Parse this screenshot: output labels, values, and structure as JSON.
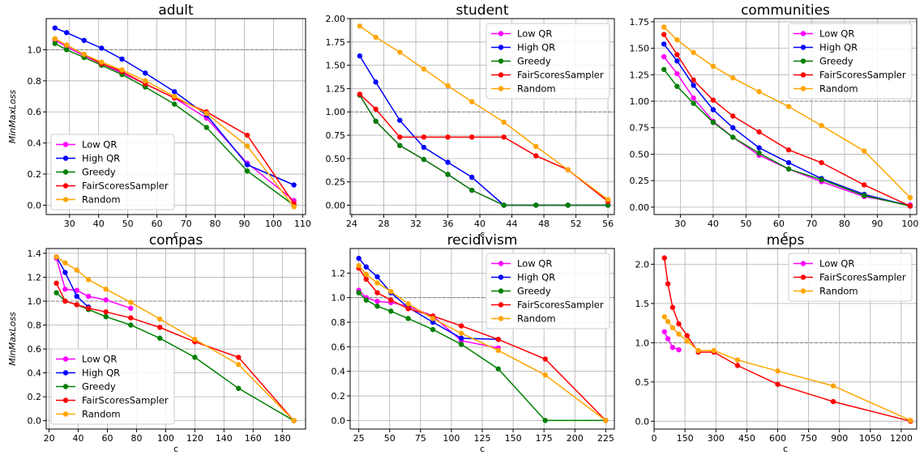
{
  "colors": {
    "Low QR": "#ff00ff",
    "High QR": "#0000ff",
    "Greedy": "#008000",
    "FairScoresSampler": "#ff0000",
    "Random": "#ffa500"
  },
  "chart_data": [
    {
      "type": "line",
      "title": "adult",
      "xlabel": "c",
      "ylabel": "MinMaxLoss",
      "xlim": [
        22,
        111
      ],
      "ylim": [
        -0.06,
        1.2
      ],
      "xticks": [
        30,
        40,
        50,
        60,
        70,
        80,
        90,
        100,
        110
      ],
      "yticks": [
        0.0,
        0.2,
        0.4,
        0.6,
        0.8,
        1.0
      ],
      "ytick_labels": [
        "0.0",
        "0.2",
        "0.4",
        "0.6",
        "0.8",
        "1.0"
      ],
      "reference_line": 1.0,
      "legend": "lower-left",
      "series": [
        {
          "name": "Low QR",
          "x": [
            25,
            29,
            35,
            41,
            48,
            56,
            66,
            77,
            91,
            107
          ],
          "y": [
            1.06,
            1.02,
            0.96,
            0.91,
            0.85,
            0.78,
            0.69,
            0.56,
            0.27,
            0.03
          ]
        },
        {
          "name": "High QR",
          "x": [
            25,
            29,
            35,
            41,
            48,
            56,
            66,
            77,
            91,
            107
          ],
          "y": [
            1.14,
            1.11,
            1.06,
            1.01,
            0.94,
            0.85,
            0.73,
            0.58,
            0.26,
            0.13
          ]
        },
        {
          "name": "Greedy",
          "x": [
            25,
            29,
            35,
            41,
            48,
            56,
            66,
            77,
            91,
            107
          ],
          "y": [
            1.04,
            1.0,
            0.95,
            0.9,
            0.84,
            0.76,
            0.65,
            0.5,
            0.22,
            0.0
          ]
        },
        {
          "name": "FairScoresSampler",
          "x": [
            25,
            29,
            35,
            41,
            48,
            56,
            66,
            77,
            91,
            107
          ],
          "y": [
            1.07,
            1.03,
            0.97,
            0.91,
            0.86,
            0.78,
            0.69,
            0.6,
            0.45,
            0.01
          ]
        },
        {
          "name": "Random",
          "x": [
            25,
            29,
            35,
            41,
            48,
            56,
            66,
            77,
            91,
            107
          ],
          "y": [
            1.07,
            1.03,
            0.97,
            0.92,
            0.87,
            0.8,
            0.7,
            0.59,
            0.38,
            -0.01
          ]
        }
      ]
    },
    {
      "type": "line",
      "title": "student",
      "xlabel": "c",
      "ylabel": "",
      "xlim": [
        23.8,
        56.8
      ],
      "ylim": [
        -0.1,
        2.0
      ],
      "xticks": [
        24,
        28,
        32,
        36,
        40,
        44,
        48,
        52,
        56
      ],
      "yticks": [
        0.0,
        0.25,
        0.5,
        0.75,
        1.0,
        1.25,
        1.5,
        1.75,
        2.0
      ],
      "ytick_labels": [
        "0.00",
        "0.25",
        "0.50",
        "0.75",
        "1.00",
        "1.25",
        "1.50",
        "1.75",
        "2.00"
      ],
      "reference_line": 1.0,
      "legend": "top-right",
      "series": [
        {
          "name": "Low QR",
          "x": [
            25,
            27,
            30,
            33,
            36,
            39,
            43,
            47,
            51,
            56
          ],
          "y": [
            1.18,
            0.9,
            0.64,
            0.49,
            0.33,
            0.16,
            0.0,
            0.0,
            0.0,
            0.0
          ]
        },
        {
          "name": "High QR",
          "x": [
            25,
            27,
            30,
            33,
            36,
            39,
            43,
            47,
            51,
            56
          ],
          "y": [
            1.6,
            1.32,
            0.91,
            0.62,
            0.46,
            0.3,
            0.0,
            0.0,
            0.0,
            0.0
          ]
        },
        {
          "name": "Greedy",
          "x": [
            25,
            27,
            30,
            33,
            36,
            39,
            43,
            47,
            51,
            56
          ],
          "y": [
            1.18,
            0.9,
            0.64,
            0.49,
            0.33,
            0.16,
            0.0,
            0.0,
            0.0,
            0.0
          ]
        },
        {
          "name": "FairScoresSampler",
          "x": [
            25,
            27,
            30,
            33,
            36,
            39,
            43,
            47,
            51,
            56
          ],
          "y": [
            1.19,
            1.03,
            0.73,
            0.73,
            0.73,
            0.73,
            0.73,
            0.53,
            0.38,
            0.04
          ]
        },
        {
          "name": "Random",
          "x": [
            25,
            27,
            30,
            33,
            36,
            39,
            43,
            47,
            51,
            56
          ],
          "y": [
            1.92,
            1.8,
            1.64,
            1.46,
            1.28,
            1.11,
            0.89,
            0.63,
            0.38,
            0.06
          ]
        }
      ]
    },
    {
      "type": "line",
      "title": "communities",
      "xlabel": "c",
      "ylabel": "",
      "xlim": [
        22,
        102
      ],
      "ylim": [
        -0.07,
        1.78
      ],
      "xticks": [
        30,
        40,
        50,
        60,
        70,
        80,
        90,
        100
      ],
      "yticks": [
        0.0,
        0.25,
        0.5,
        0.75,
        1.0,
        1.25,
        1.5,
        1.75
      ],
      "ytick_labels": [
        "0.00",
        "0.25",
        "0.50",
        "0.75",
        "1.00",
        "1.25",
        "1.50",
        "1.75"
      ],
      "reference_line": 1.0,
      "legend": "top-right",
      "series": [
        {
          "name": "Low QR",
          "x": [
            25,
            29,
            34,
            40,
            46,
            54,
            63,
            73,
            86,
            100
          ],
          "y": [
            1.42,
            1.26,
            1.03,
            0.81,
            0.66,
            0.49,
            0.36,
            0.24,
            0.1,
            0.02
          ]
        },
        {
          "name": "High QR",
          "x": [
            25,
            29,
            34,
            40,
            46,
            54,
            63,
            73,
            86,
            100
          ],
          "y": [
            1.54,
            1.38,
            1.15,
            0.92,
            0.75,
            0.56,
            0.42,
            0.27,
            0.12,
            0.01
          ]
        },
        {
          "name": "Greedy",
          "x": [
            25,
            29,
            34,
            40,
            46,
            54,
            63,
            73,
            86,
            100
          ],
          "y": [
            1.3,
            1.14,
            0.98,
            0.8,
            0.66,
            0.51,
            0.36,
            0.26,
            0.11,
            0.01
          ]
        },
        {
          "name": "FairScoresSampler",
          "x": [
            25,
            29,
            34,
            40,
            46,
            54,
            63,
            73,
            86,
            100
          ],
          "y": [
            1.63,
            1.44,
            1.2,
            1.01,
            0.86,
            0.71,
            0.54,
            0.42,
            0.21,
            0.01
          ]
        },
        {
          "name": "Random",
          "x": [
            25,
            29,
            34,
            40,
            46,
            54,
            63,
            73,
            86,
            100
          ],
          "y": [
            1.7,
            1.58,
            1.46,
            1.33,
            1.22,
            1.09,
            0.95,
            0.77,
            0.53,
            0.09
          ]
        }
      ]
    },
    {
      "type": "line",
      "title": "compas",
      "xlabel": "c",
      "ylabel": "MinMaxLoss",
      "xlim": [
        18,
        196
      ],
      "ylim": [
        -0.07,
        1.44
      ],
      "xticks": [
        20,
        40,
        60,
        80,
        100,
        120,
        140,
        160,
        180
      ],
      "yticks": [
        0.0,
        0.2,
        0.4,
        0.6,
        0.8,
        1.0,
        1.2,
        1.4
      ],
      "ytick_labels": [
        "0.0",
        "0.2",
        "0.4",
        "0.6",
        "0.8",
        "1.0",
        "1.2",
        "1.4"
      ],
      "reference_line": 1.0,
      "legend": "lower-left",
      "series": [
        {
          "name": "Low QR",
          "x": [
            25,
            31,
            39,
            47,
            59,
            76
          ],
          "y": [
            1.36,
            1.1,
            1.09,
            1.04,
            1.01,
            0.94
          ]
        },
        {
          "name": "High QR",
          "x": [
            25,
            31,
            39,
            47
          ],
          "y": [
            1.37,
            1.24,
            1.04,
            0.95
          ]
        },
        {
          "name": "Greedy",
          "x": [
            25,
            31,
            39,
            47,
            59,
            76,
            96,
            120,
            150,
            188
          ],
          "y": [
            1.07,
            1.0,
            0.97,
            0.93,
            0.87,
            0.8,
            0.69,
            0.53,
            0.27,
            0.0
          ]
        },
        {
          "name": "FairScoresSampler",
          "x": [
            25,
            31,
            39,
            47,
            59,
            76,
            96,
            120,
            150,
            188
          ],
          "y": [
            1.15,
            1.0,
            0.97,
            0.94,
            0.91,
            0.86,
            0.78,
            0.66,
            0.53,
            0.0
          ]
        },
        {
          "name": "Random",
          "x": [
            25,
            31,
            39,
            47,
            59,
            76,
            96,
            120,
            150,
            188
          ],
          "y": [
            1.37,
            1.32,
            1.26,
            1.18,
            1.1,
            0.99,
            0.85,
            0.68,
            0.47,
            0.0
          ]
        }
      ]
    },
    {
      "type": "line",
      "title": "recidivism",
      "xlabel": "c",
      "ylabel": "",
      "xlim": [
        18,
        232
      ],
      "ylim": [
        -0.07,
        1.4
      ],
      "xticks": [
        25,
        50,
        75,
        100,
        125,
        150,
        175,
        200,
        225
      ],
      "yticks": [
        0.0,
        0.2,
        0.4,
        0.6,
        0.8,
        1.0,
        1.2
      ],
      "ytick_labels": [
        "0.0",
        "0.2",
        "0.4",
        "0.6",
        "0.8",
        "1.0",
        "1.2"
      ],
      "reference_line": 1.0,
      "legend": "top-right",
      "series": [
        {
          "name": "Low QR",
          "x": [
            25,
            31,
            40,
            51,
            65,
            85,
            108,
            138
          ],
          "y": [
            1.06,
            1.0,
            0.97,
            0.96,
            0.93,
            0.85,
            0.65,
            0.59
          ]
        },
        {
          "name": "High QR",
          "x": [
            25,
            31,
            40,
            51,
            65,
            85,
            108,
            138
          ],
          "y": [
            1.32,
            1.25,
            1.17,
            1.04,
            0.92,
            0.8,
            0.67,
            0.66
          ]
        },
        {
          "name": "Greedy",
          "x": [
            25,
            31,
            40,
            51,
            65,
            85,
            108,
            138,
            176,
            225
          ],
          "y": [
            1.04,
            0.98,
            0.93,
            0.89,
            0.83,
            0.74,
            0.62,
            0.42,
            0.0,
            0.0
          ]
        },
        {
          "name": "FairScoresSampler",
          "x": [
            25,
            31,
            40,
            51,
            65,
            85,
            108,
            138,
            176,
            225
          ],
          "y": [
            1.24,
            1.15,
            1.04,
            0.98,
            0.91,
            0.85,
            0.77,
            0.66,
            0.5,
            0.0
          ]
        },
        {
          "name": "Random",
          "x": [
            25,
            31,
            40,
            51,
            65,
            85,
            108,
            138,
            176,
            225
          ],
          "y": [
            1.26,
            1.19,
            1.12,
            1.05,
            0.95,
            0.83,
            0.71,
            0.57,
            0.37,
            0.0
          ]
        }
      ]
    },
    {
      "type": "line",
      "title": "meps",
      "xlabel": "c",
      "ylabel": "",
      "xlim": [
        0,
        1275
      ],
      "ylim": [
        -0.1,
        2.2
      ],
      "xticks": [
        0,
        150,
        300,
        450,
        600,
        750,
        900,
        1050,
        1200
      ],
      "yticks": [
        0.0,
        0.5,
        1.0,
        1.5,
        2.0
      ],
      "ytick_labels": [
        "0.0",
        "0.5",
        "1.0",
        "1.5",
        "2.0"
      ],
      "reference_line": 1.0,
      "legend": "top-right",
      "series": [
        {
          "name": "Low QR",
          "x": [
            50,
            67,
            90,
            120
          ],
          "y": [
            1.14,
            1.05,
            0.94,
            0.91
          ]
        },
        {
          "name": "FairScoresSampler",
          "x": [
            50,
            67,
            90,
            120,
            160,
            215,
            290,
            405,
            600,
            870,
            1245
          ],
          "y": [
            2.08,
            1.75,
            1.45,
            1.24,
            1.09,
            0.88,
            0.88,
            0.71,
            0.47,
            0.25,
            0.0
          ]
        },
        {
          "name": "Random",
          "x": [
            50,
            67,
            90,
            120,
            160,
            215,
            290,
            405,
            600,
            870,
            1245
          ],
          "y": [
            1.33,
            1.27,
            1.19,
            1.11,
            1.02,
            0.9,
            0.9,
            0.78,
            0.64,
            0.45,
            0.01
          ]
        }
      ]
    }
  ]
}
